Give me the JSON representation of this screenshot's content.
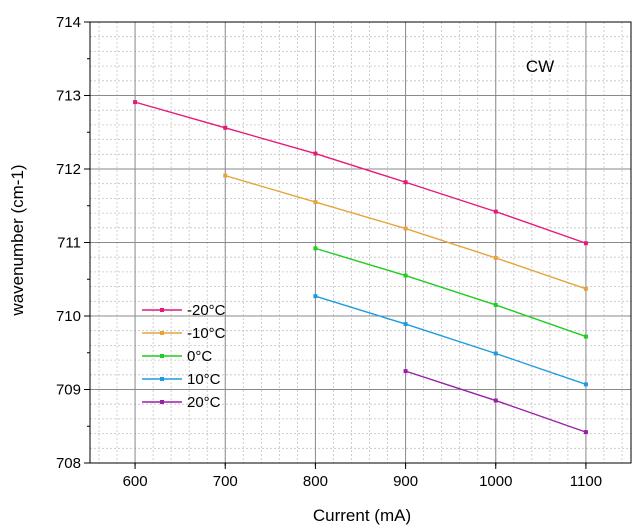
{
  "chart_data": {
    "type": "line",
    "title": "",
    "xlabel": "Current (mA)",
    "ylabel": "wavenumber (cm-1)",
    "xlim": [
      550,
      1150
    ],
    "ylim": [
      708,
      714
    ],
    "xticks": [
      600,
      700,
      800,
      900,
      1000,
      1100
    ],
    "yticks": [
      708,
      709,
      710,
      711,
      712,
      713,
      714
    ],
    "grid": true,
    "minor_grid": true,
    "legend_position": "bottom-left",
    "annotation": "CW",
    "series": [
      {
        "name": "-20°C",
        "color": "#e6197a",
        "x": [
          600,
          700,
          800,
          900,
          1000,
          1100
        ],
        "y": [
          712.91,
          712.56,
          712.21,
          711.82,
          711.42,
          710.99
        ]
      },
      {
        "name": "-10°C",
        "color": "#e6a53c",
        "x": [
          700,
          800,
          900,
          1000,
          1100
        ],
        "y": [
          711.91,
          711.55,
          711.19,
          710.79,
          710.37
        ]
      },
      {
        "name": "0°C",
        "color": "#22cc22",
        "x": [
          800,
          900,
          1000,
          1100
        ],
        "y": [
          710.92,
          710.55,
          710.15,
          709.72
        ]
      },
      {
        "name": "10°C",
        "color": "#1e9be0",
        "x": [
          800,
          900,
          1000,
          1100
        ],
        "y": [
          710.27,
          709.89,
          709.49,
          709.07
        ]
      },
      {
        "name": "20°C",
        "color": "#9b1ea6",
        "x": [
          900,
          1000,
          1100
        ],
        "y": [
          709.25,
          708.85,
          708.42
        ]
      }
    ]
  }
}
